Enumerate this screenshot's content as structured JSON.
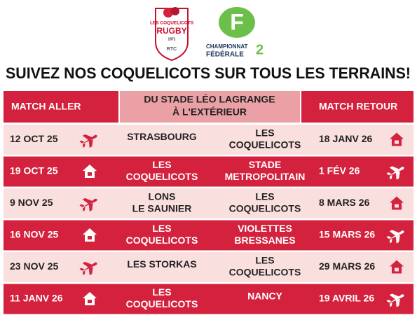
{
  "logos": {
    "club": {
      "name": "LES COQUELICOTS",
      "sport": "RUGBY",
      "year": "1971",
      "abbr": "RTC"
    },
    "league": {
      "letter": "F",
      "line1": "CHAMPIONNAT",
      "line2": "FÉDÉRALE",
      "division": "2"
    }
  },
  "title": "SUIVEZ NOS COQUELICOTS SUR TOUS LES TERRAINS!",
  "table": {
    "headers": {
      "aller": "MATCH ALLER",
      "middle": [
        "DU STADE LÉO LAGRANGE",
        "À L'EXTÉRIEUR"
      ],
      "retour": "MATCH RETOUR"
    },
    "rows": [
      {
        "aller": "12 OCT 25",
        "home": [
          "STRASBOURG"
        ],
        "away": [
          "LES",
          "COQUELICOTS"
        ],
        "retour": "18 JANV 26"
      },
      {
        "aller": "19 OCT  25",
        "home": [
          "LES",
          "COQUELICOTS"
        ],
        "away": [
          "STADE",
          "METROPOLITAIN"
        ],
        "retour": "1 FÉV 26"
      },
      {
        "aller": "9 NOV  25",
        "home": [
          "LONS",
          "LE SAUNIER"
        ],
        "away": [
          "LES",
          "COQUELICOTS"
        ],
        "retour": "8 MARS 26"
      },
      {
        "aller": "16 NOV 25",
        "home": [
          "LES",
          "COQUELICOTS"
        ],
        "away": [
          "VIOLETTES",
          "BRESSANES"
        ],
        "retour": "15 MARS 26"
      },
      {
        "aller": "23 NOV 25",
        "home": [
          "LES STORKAS"
        ],
        "away": [
          "LES",
          "COQUELICOTS"
        ],
        "retour": "29 MARS 26"
      },
      {
        "aller": "11 JANV 26",
        "home": [
          "LES",
          "COQUELICOTS"
        ],
        "away": [
          "NANCY"
        ],
        "retour": "19 AVRIL 26"
      }
    ]
  }
}
